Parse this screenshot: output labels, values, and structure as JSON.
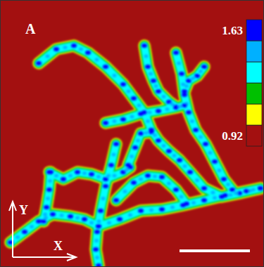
{
  "chart_data": {
    "type": "field",
    "title": "A",
    "xlabel": "X",
    "ylabel": "Y",
    "xlim": [
      0,
      375
    ],
    "ylim": [
      0,
      380
    ],
    "tick_labels": false,
    "colorbar": {
      "range": [
        0.92,
        1.63
      ],
      "ticks": [
        1.63,
        0.92
      ],
      "colors": [
        "#a31010",
        "#ffff00",
        "#00c000",
        "#00ffff",
        "#00b0ff",
        "#0000ff"
      ]
    },
    "series": [
      {
        "x": [
          55,
          80,
          105,
          125,
          150,
          175,
          190,
          205,
          215,
          225,
          240,
          255,
          270,
          290,
          315,
          340,
          370
        ],
        "y": [
          290,
          310,
          315,
          305,
          285,
          260,
          240,
          220,
          195,
          180,
          165,
          152,
          135,
          112,
          100,
          105,
          112
        ]
      },
      {
        "x": [
          205,
          210,
          218,
          225,
          240,
          250
        ],
        "y": [
          315,
          285,
          265,
          250,
          235,
          228
        ]
      },
      {
        "x": [
          250,
          258,
          262,
          268,
          278,
          292,
          305,
          318,
          330
        ],
        "y": [
          305,
          275,
          245,
          220,
          195,
          175,
          150,
          125,
          110
        ]
      },
      {
        "x": [
          290,
          280,
          268,
          262
        ],
        "y": [
          285,
          272,
          265,
          250
        ]
      },
      {
        "x": [
          150,
          175,
          200,
          225,
          250,
          262
        ],
        "y": [
          205,
          210,
          218,
          222,
          227,
          230
        ]
      },
      {
        "x": [
          215,
          200,
          192,
          182
        ],
        "y": [
          192,
          190,
          170,
          145
        ]
      },
      {
        "x": [
          165,
          158,
          150,
          143,
          138,
          136,
          140
        ],
        "y": [
          175,
          145,
          115,
          80,
          50,
          25,
          2
        ]
      },
      {
        "x": [
          70,
          90,
          110,
          130,
          150,
          175,
          185
        ],
        "y": [
          135,
          125,
          135,
          132,
          125,
          135,
          142
        ]
      },
      {
        "x": [
          15,
          35,
          55,
          75,
          100,
          120,
          140
        ],
        "y": [
          35,
          50,
          65,
          75,
          72,
          68,
          58
        ]
      },
      {
        "x": [
          140,
          170,
          200,
          230,
          260,
          290,
          320,
          350,
          370
        ],
        "y": [
          58,
          68,
          80,
          82,
          88,
          95,
          102,
          108,
          112
        ]
      },
      {
        "x": [
          165,
          190,
          210,
          230,
          250,
          265
        ],
        "y": [
          95,
          120,
          130,
          128,
          110,
          90
        ]
      },
      {
        "x": [
          72,
          70,
          66,
          62
        ],
        "y": [
          135,
          110,
          85,
          65
        ]
      }
    ]
  }
}
